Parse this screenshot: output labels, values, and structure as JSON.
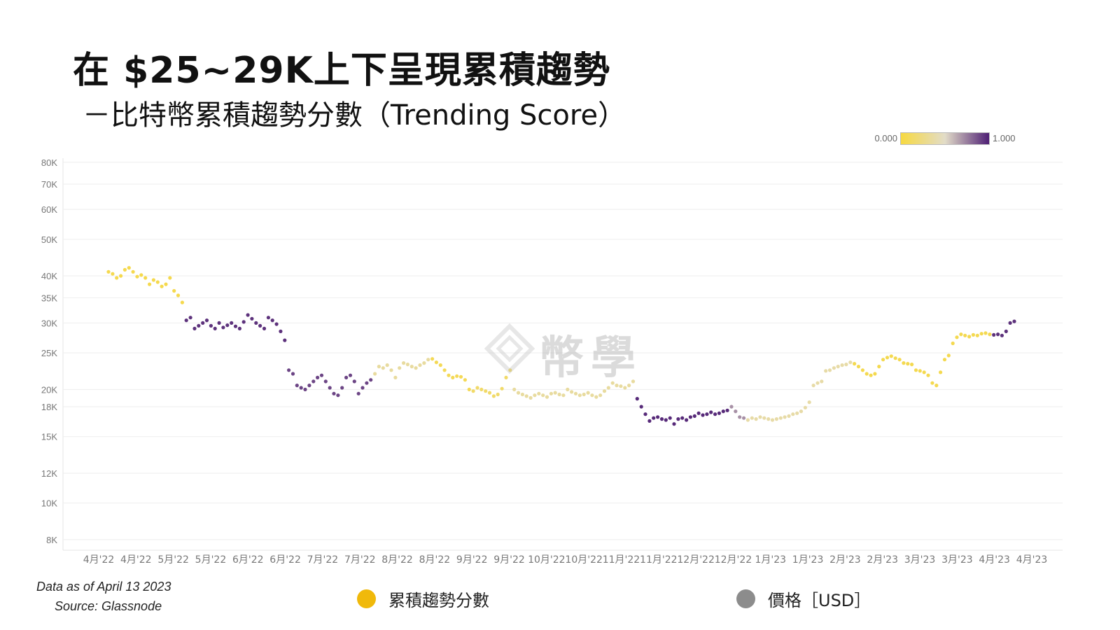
{
  "title": "在 $25~29K上下呈現累積趨勢",
  "subtitle": "－比特幣累積趨勢分數（Trending Score）",
  "colorbar": {
    "min_label": "0.000",
    "max_label": "1.000"
  },
  "footnote": {
    "data_as_of": "Data as of April 13 2023",
    "source": "Source: Glassnode"
  },
  "watermark": {
    "text": "幣學",
    "icon": "diamond-logo-icon"
  },
  "legend": [
    {
      "label": "累積趨勢分數",
      "color": "#F0B90B"
    },
    {
      "label": "價格［USD］",
      "color": "#8C8C8C"
    }
  ],
  "colors": {
    "score_low": "#F7D940",
    "score_mid": "#E2DCC8",
    "score_high": "#4E1F74",
    "grid": "#EEEEEE"
  },
  "chart_data": {
    "type": "scatter",
    "title": "",
    "xlabel": "",
    "ylabel": "",
    "y_scale": "log",
    "ylim": [
      7500,
      82000
    ],
    "grid": true,
    "y_ticks": [
      {
        "value": 8000,
        "label": "8K"
      },
      {
        "value": 10000,
        "label": "10K"
      },
      {
        "value": 12000,
        "label": "12K"
      },
      {
        "value": 15000,
        "label": "15K"
      },
      {
        "value": 18000,
        "label": "18K"
      },
      {
        "value": 20000,
        "label": "20K"
      },
      {
        "value": 25000,
        "label": "25K"
      },
      {
        "value": 30000,
        "label": "30K"
      },
      {
        "value": 35000,
        "label": "35K"
      },
      {
        "value": 40000,
        "label": "40K"
      },
      {
        "value": 50000,
        "label": "50K"
      },
      {
        "value": 60000,
        "label": "60K"
      },
      {
        "value": 70000,
        "label": "70K"
      },
      {
        "value": 80000,
        "label": "80K"
      }
    ],
    "x_tick_labels": [
      "4月'22",
      "4月'22",
      "5月'22",
      "5月'22",
      "6月'22",
      "6月'22",
      "7月'22",
      "7月'22",
      "8月'22",
      "8月'22",
      "9月'22",
      "9月'22",
      "10月'22",
      "10月'22",
      "11月'22",
      "11月'22",
      "12月'22",
      "12月'22",
      "1月'23",
      "1月'23",
      "2月'23",
      "2月'23",
      "3月'23",
      "3月'23",
      "4月'23",
      "4月'23"
    ],
    "color_scale": "score 0.000 (yellow) to 1.000 (purple)",
    "series": [
      {
        "name": "價格［USD］",
        "color_by": "累積趨勢分數",
        "price": [
          41000,
          40500,
          39500,
          40000,
          41500,
          42000,
          41000,
          39800,
          40200,
          39500,
          38000,
          39000,
          38500,
          37500,
          38000,
          39500,
          36500,
          35500,
          34000,
          30500,
          31000,
          29000,
          29500,
          30000,
          30500,
          29500,
          29000,
          30000,
          29200,
          29600,
          30000,
          29400,
          29000,
          30200,
          31500,
          30800,
          30000,
          29500,
          29000,
          31000,
          30500,
          29800,
          28500,
          27000,
          22500,
          22000,
          20500,
          20200,
          20000,
          20500,
          21000,
          21500,
          21800,
          21000,
          20200,
          19500,
          19300,
          20200,
          21500,
          21800,
          21000,
          19500,
          20200,
          20800,
          21200,
          22000,
          23000,
          22800,
          23200,
          22500,
          21500,
          22800,
          23500,
          23300,
          23000,
          22800,
          23200,
          23500,
          24000,
          24100,
          23600,
          23200,
          22500,
          21800,
          21500,
          21700,
          21600,
          21200,
          20000,
          19800,
          20200,
          20000,
          19800,
          19600,
          19200,
          19400,
          20100,
          21500,
          22500,
          20000,
          19600,
          19400,
          19200,
          19000,
          19300,
          19500,
          19300,
          19100,
          19500,
          19600,
          19400,
          19300,
          20000,
          19700,
          19500,
          19300,
          19400,
          19600,
          19300,
          19100,
          19300,
          19800,
          20200,
          20800,
          20500,
          20400,
          20200,
          20500,
          21000,
          18900,
          18000,
          17200,
          16500,
          16800,
          16900,
          16700,
          16600,
          16800,
          16200,
          16700,
          16800,
          16600,
          16900,
          17000,
          17300,
          17100,
          17200,
          17400,
          17200,
          17300,
          17500,
          17600,
          18000,
          17500,
          16900,
          16800,
          16600,
          16800,
          16700,
          16900,
          16800,
          16700,
          16600,
          16700,
          16800,
          16900,
          17000,
          17200,
          17300,
          17500,
          17900,
          18500,
          20500,
          20800,
          21000,
          22400,
          22500,
          22800,
          23000,
          23200,
          23300,
          23600,
          23400,
          23000,
          22500,
          22000,
          21800,
          22000,
          23000,
          24000,
          24300,
          24500,
          24200,
          24000,
          23500,
          23400,
          23300,
          22500,
          22400,
          22200,
          21800,
          20800,
          20500,
          22200,
          24000,
          24600,
          26500,
          27500,
          28000,
          27800,
          27600,
          27900,
          27800,
          28100,
          28200,
          28000,
          27900,
          28000,
          27800,
          28500,
          30000,
          30300
        ]
      }
    ]
  }
}
